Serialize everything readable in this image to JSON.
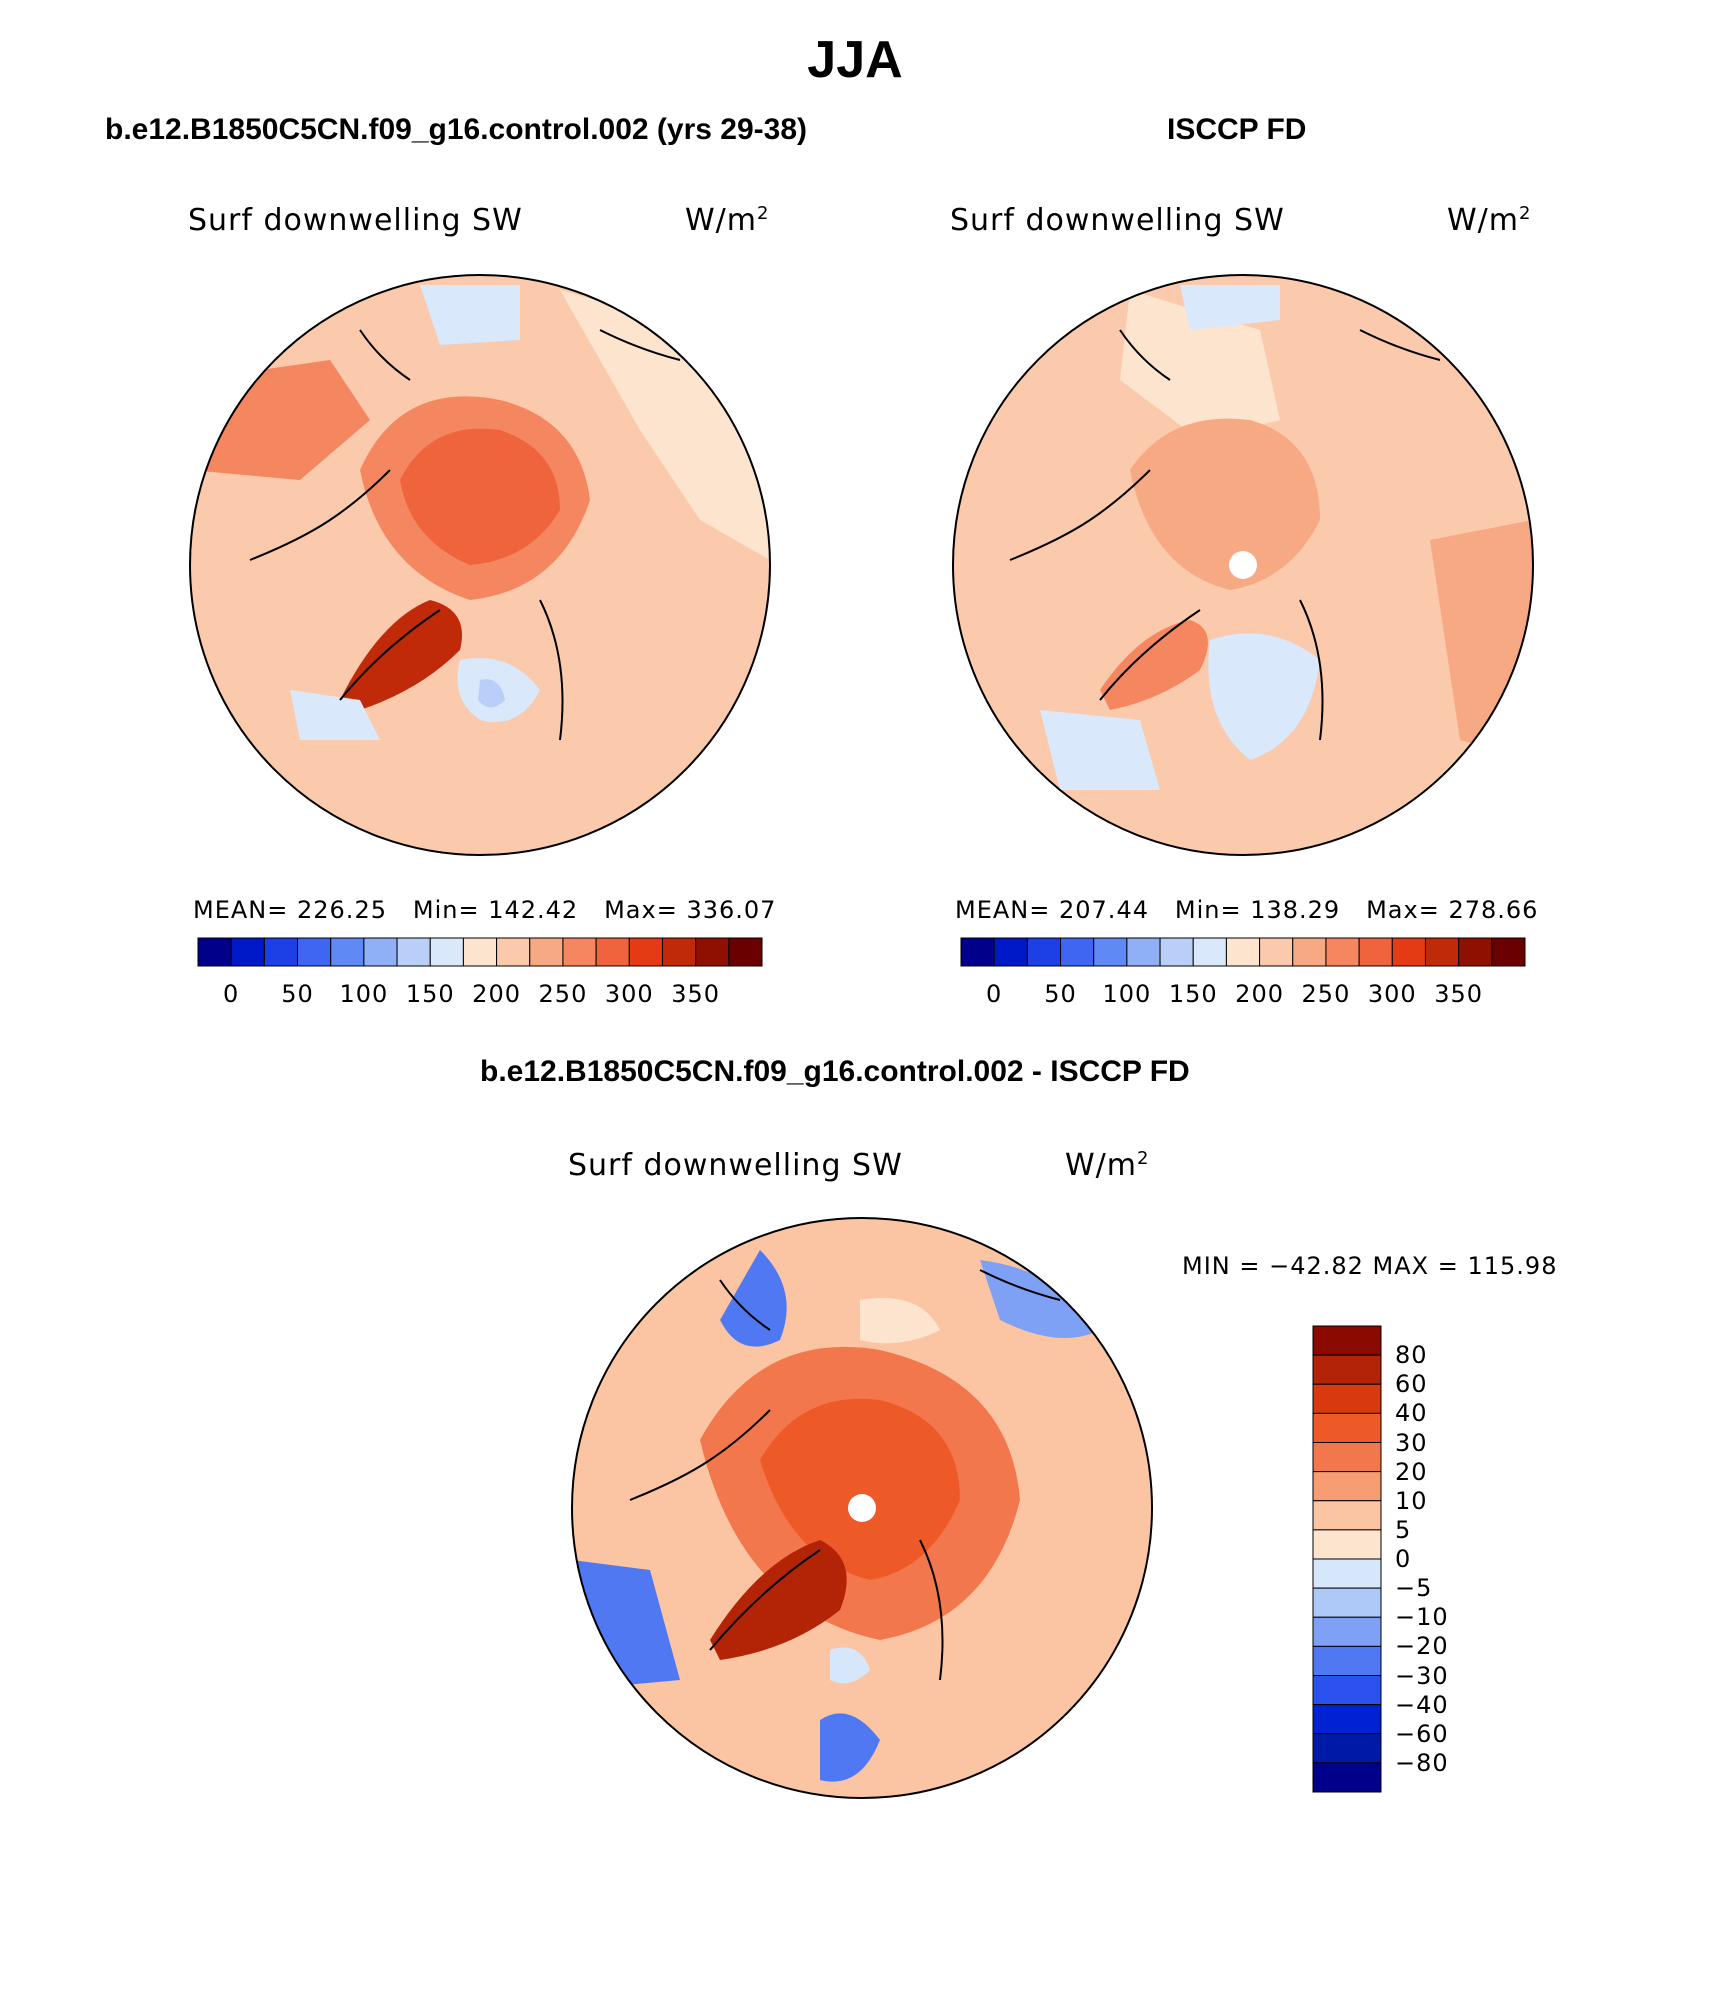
{
  "figure": {
    "title": "JJA",
    "panel_left": {
      "case_title": "b.e12.B1850C5CN.f09_g16.control.002 (yrs 29-38)",
      "variable": "Surf downwelling SW",
      "units": "W/m",
      "units_sup": "2",
      "stats": {
        "mean_label": "MEAN=",
        "mean": "226.25",
        "min_label": "Min=",
        "min": "142.42",
        "max_label": "Max=",
        "max": "336.07"
      }
    },
    "panel_right": {
      "case_title": "ISCCP FD",
      "variable": "Surf downwelling SW",
      "units": "W/m",
      "units_sup": "2",
      "stats": {
        "mean_label": "MEAN=",
        "mean": "207.44",
        "min_label": "Min=",
        "min": "138.29",
        "max_label": "Max=",
        "max": "278.66"
      }
    },
    "panel_diff": {
      "case_title": "b.e12.B1850C5CN.f09_g16.control.002 - ISCCP FD",
      "variable": "Surf downwelling SW",
      "units": "W/m",
      "units_sup": "2",
      "minmax": "MIN = −42.82  MAX = 115.98"
    },
    "colorbar_abs": {
      "colors": [
        "#00008a",
        "#0019c8",
        "#1c3fe6",
        "#3f66f2",
        "#5f8af5",
        "#8fb0f6",
        "#b9cff8",
        "#d9e8fb",
        "#fde4cf",
        "#fbc9ab",
        "#f7a983",
        "#f48660",
        "#f0643d",
        "#e43b14",
        "#c12a08",
        "#8f0f00",
        "#6a0000"
      ],
      "tick_labels": [
        "0",
        "50",
        "100",
        "150",
        "200",
        "250",
        "300",
        "350"
      ]
    },
    "colorbar_diff": {
      "colors": [
        "#00008a",
        "#001aa8",
        "#0022d2",
        "#2b52ee",
        "#4f78f2",
        "#7ea0f5",
        "#aec8f8",
        "#d7e7fb",
        "#fde4cf",
        "#fbc5a4",
        "#f79d74",
        "#f3774c",
        "#ee5a27",
        "#d8390f",
        "#b32407",
        "#8a0a00"
      ],
      "tick_labels": [
        "80",
        "60",
        "40",
        "30",
        "20",
        "10",
        "5",
        "0",
        "−5",
        "−10",
        "−20",
        "−30",
        "−40",
        "−60",
        "−80"
      ]
    },
    "map_colors": {
      "ocean_light": "#fbc9ab",
      "ocean_pale": "#fde4cf",
      "warm": "#f48660",
      "warmer": "#f0643d",
      "hot": "#e43b14",
      "hottest": "#c12a08",
      "cool": "#d9e8fb",
      "cooler": "#b9cff8",
      "blue": "#5f8af5",
      "blue_deep": "#3f66f2"
    }
  }
}
